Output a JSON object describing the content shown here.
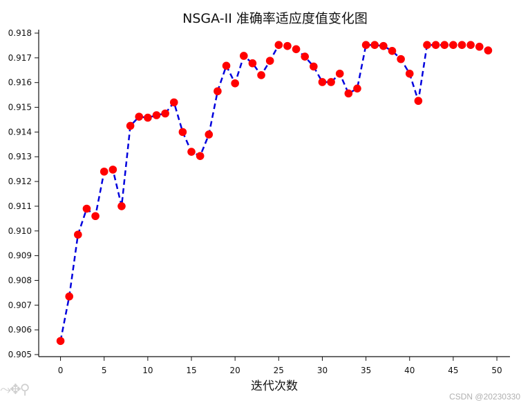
{
  "chart_data": {
    "type": "line",
    "title": "NSGA-II 准确率适应度值变化图",
    "xlabel": "迭代次数",
    "ylabel": "",
    "xlim": [
      -2.5,
      51.5
    ],
    "ylim": [
      0.905,
      0.918
    ],
    "xticks": [
      0,
      5,
      10,
      15,
      20,
      25,
      30,
      35,
      40,
      45,
      50
    ],
    "yticks": [
      0.905,
      0.906,
      0.907,
      0.908,
      0.909,
      0.91,
      0.911,
      0.912,
      0.913,
      0.914,
      0.915,
      0.916,
      0.917,
      0.918
    ],
    "grid": false,
    "line_color": "#0000dd",
    "marker_color": "#ff0000",
    "x": [
      0,
      1,
      2,
      3,
      4,
      5,
      6,
      7,
      8,
      9,
      10,
      11,
      12,
      13,
      14,
      15,
      16,
      17,
      18,
      19,
      20,
      21,
      22,
      23,
      24,
      25,
      26,
      27,
      28,
      29,
      30,
      31,
      32,
      33,
      34,
      35,
      36,
      37,
      38,
      39,
      40,
      41,
      42,
      43,
      44,
      45,
      46,
      47,
      48,
      49
    ],
    "series": [
      {
        "values": [
          0.90555,
          0.90735,
          0.90985,
          0.9109,
          0.9106,
          0.9124,
          0.91248,
          0.911,
          0.91425,
          0.91462,
          0.91458,
          0.91468,
          0.91475,
          0.9152,
          0.914,
          0.9132,
          0.91303,
          0.9139,
          0.91565,
          0.91668,
          0.91597,
          0.91708,
          0.91678,
          0.9163,
          0.91688,
          0.91752,
          0.91748,
          0.91735,
          0.91705,
          0.91665,
          0.91602,
          0.91602,
          0.91636,
          0.91556,
          0.91576,
          0.91752,
          0.91752,
          0.91748,
          0.91728,
          0.91695,
          0.91636,
          0.91526,
          0.91752,
          0.91752,
          0.91752,
          0.91752,
          0.91752,
          0.91752,
          0.91745,
          0.9173
        ]
      }
    ]
  },
  "toolbar": {
    "icons": "⤳✥⚲"
  },
  "watermark": "CSDN @20230330"
}
